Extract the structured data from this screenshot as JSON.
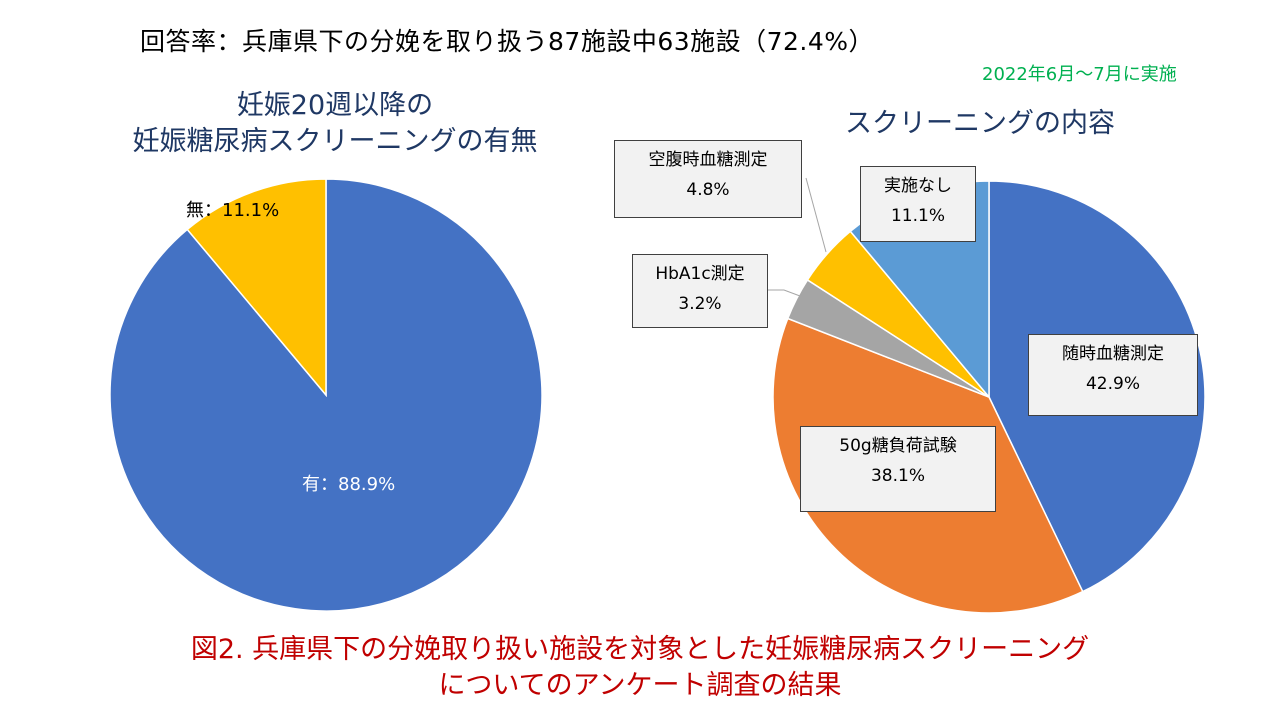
{
  "header": {
    "response_rate": "回答率：兵庫県下の分娩を取り扱う87施設中63施設（72.4%）",
    "survey_period": "2022年6月～7月に実施"
  },
  "chart_data": [
    {
      "type": "pie",
      "title_line1": "妊娠20週以降の",
      "title_line2": "妊娠糖尿病スクリーニングの有無",
      "slices": [
        {
          "label": "有",
          "value": 88.9,
          "display": "有：88.9%",
          "color": "#4472c4"
        },
        {
          "label": "無",
          "value": 11.1,
          "display": "無：11.1%",
          "color": "#ffc000"
        }
      ]
    },
    {
      "type": "pie",
      "title": "スクリーニングの内容",
      "slices": [
        {
          "label": "随時血糖測定",
          "value": 42.9,
          "display": "42.9%",
          "color": "#4472c4"
        },
        {
          "label": "50g糖負荷試験",
          "value": 38.1,
          "display": "38.1%",
          "color": "#ed7d31"
        },
        {
          "label": "HbA1c測定",
          "value": 3.2,
          "display": "3.2%",
          "color": "#a5a5a5"
        },
        {
          "label": "空腹時血糖測定",
          "value": 4.8,
          "display": "4.8%",
          "color": "#ffc000"
        },
        {
          "label": "実施なし",
          "value": 11.1,
          "display": "11.1%",
          "color": "#5b9bd5"
        }
      ]
    }
  ],
  "caption": {
    "line1": "図2. 兵庫県下の分娩取り扱い施設を対象とした妊娠糖尿病スクリーニング",
    "line2": "についてのアンケート調査の結果"
  }
}
